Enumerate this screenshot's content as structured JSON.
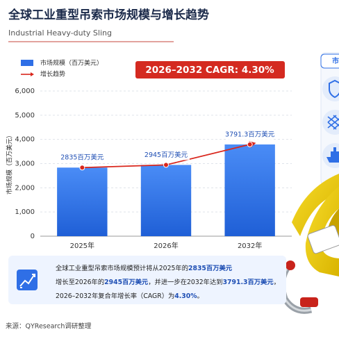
{
  "header": {
    "title": "全球工业重型吊索市场规模与增长趋势",
    "subtitle": "Industrial Heavy-duty Sling"
  },
  "chart_data": {
    "type": "bar",
    "categories": [
      "2025年",
      "2026年",
      "2032年"
    ],
    "series": [
      {
        "name": "市场规模（百万美元）",
        "type": "bar",
        "color": "#2f6fe6",
        "values": [
          2835,
          2945,
          3791.3
        ],
        "value_labels": [
          "2835百万美元",
          "2945百万美元",
          "3791.3百万美元"
        ]
      },
      {
        "name": "增长趋势",
        "type": "line",
        "color": "#d9261c",
        "values": [
          2835,
          2945,
          3791.3
        ]
      }
    ],
    "ylabel": "市场规模（百万美元）",
    "ylim": [
      0,
      6000
    ],
    "yticks": [
      0,
      {
        "value": 1000,
        "label": "1,000"
      },
      {
        "value": 2000,
        "label": "2,000"
      },
      {
        "value": 3000,
        "label": "3,000"
      },
      {
        "value": 4000,
        "label": "4,000"
      },
      {
        "value": 5000,
        "label": "5,000"
      },
      {
        "value": 6000,
        "label": "6,000"
      }
    ],
    "grid": true,
    "annotation": "2026–2032 CAGR: 4.30%"
  },
  "summary": {
    "lines": [
      [
        {
          "text": "全球工业重型吊索市场规模预计将从2025年的"
        },
        {
          "text": "2835百万美元",
          "bold": true
        }
      ],
      [
        {
          "text": "增长至2026年的"
        },
        {
          "text": "2945百万美元",
          "bold": true
        },
        {
          "text": "，并进一步在2032年达到"
        },
        {
          "text": "3791.3百万美元",
          "bold": true
        },
        {
          "text": "，"
        }
      ],
      [
        {
          "text": "2026–2032年复合年增长率（CAGR）为"
        },
        {
          "text": "4.30%",
          "bold": true
        },
        {
          "text": "。"
        }
      ]
    ]
  },
  "side_panel": {
    "label": "市"
  },
  "source": "来源：QYResearch调研整理"
}
